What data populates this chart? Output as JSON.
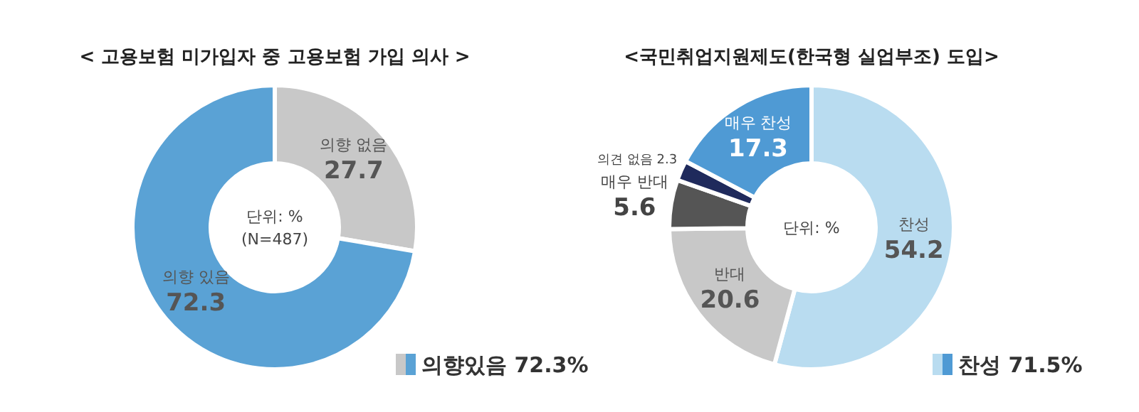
{
  "chart_data": [
    {
      "type": "donut",
      "title": "< 고용보험 미가입자 중 고용보험 가입 의사 >",
      "categories": [
        "의향 없음",
        "의향 있음"
      ],
      "values": [
        27.7,
        72.3
      ],
      "colors": [
        "#c8c8c8",
        "#5aa2d5"
      ],
      "data_labels": true,
      "annotations": [
        "단위: %",
        "(N=487)",
        "의향있음 72.3%"
      ]
    },
    {
      "type": "donut",
      "title": "<국민취업지원제도(한국형 실업부조) 도입>",
      "categories": [
        "찬성",
        "반대",
        "매우 반대",
        "의견 없음",
        "매우 찬성"
      ],
      "values": [
        54.2,
        20.6,
        5.6,
        2.3,
        17.3
      ],
      "colors": [
        "#b9dcf0",
        "#c8c8c8",
        "#555555",
        "#1f2a5c",
        "#4f9ad4"
      ],
      "data_labels": true,
      "annotations": [
        "단위: %",
        "찬성 71.5%"
      ]
    }
  ]
}
